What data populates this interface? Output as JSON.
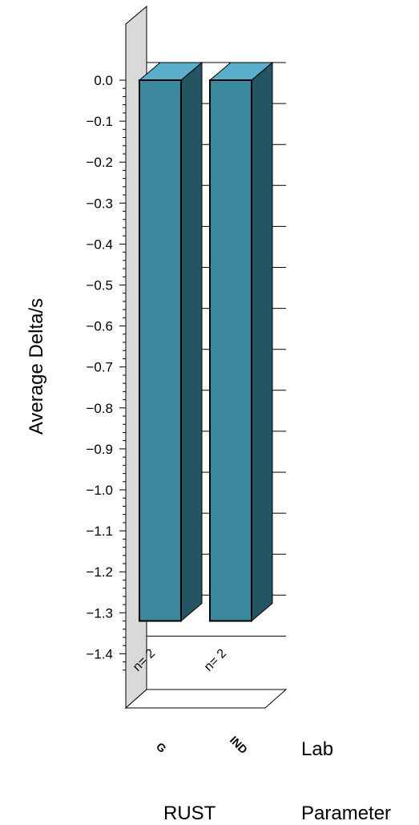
{
  "chart_data": {
    "type": "bar",
    "ylabel": "Average Delta/s",
    "ylim": [
      -1.5,
      0
    ],
    "yticks": [
      "0.0",
      "−0.1",
      "−0.2",
      "−0.3",
      "−0.4",
      "−0.5",
      "−0.6",
      "−0.7",
      "−0.8",
      "−0.9",
      "−1.0",
      "−1.1",
      "−1.2",
      "−1.3",
      "−1.4"
    ],
    "categories": [
      "G",
      "IND"
    ],
    "values": [
      -1.32,
      -1.32
    ],
    "annotations": [
      "n= 2",
      "n= 2"
    ],
    "x_axis_name": "Lab",
    "group_label": "RUST",
    "group_axis_name": "Parameter",
    "colors": {
      "front": "#3a879e",
      "top": "#5aaecb",
      "side": "#245563",
      "wall": "#d9d9d9"
    }
  }
}
